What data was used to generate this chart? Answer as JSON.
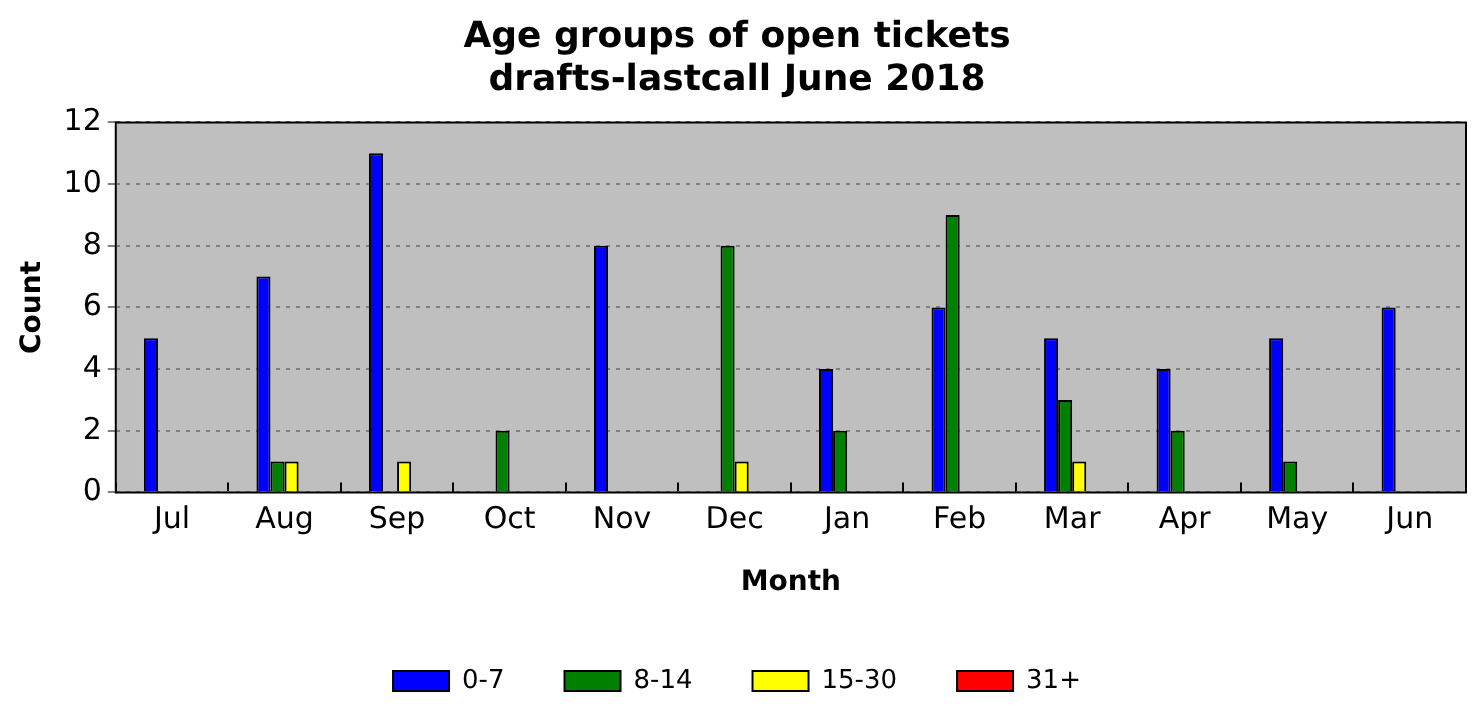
{
  "chart_data": {
    "type": "bar",
    "title": "Age groups of open tickets\ndrafts-lastcall June 2018",
    "xlabel": "Month",
    "ylabel": "Count",
    "categories": [
      "Jul",
      "Aug",
      "Sep",
      "Oct",
      "Nov",
      "Dec",
      "Jan",
      "Feb",
      "Mar",
      "Apr",
      "May",
      "Jun"
    ],
    "series": [
      {
        "name": "0-7",
        "color": "#0000ff",
        "values": [
          5,
          7,
          11,
          0,
          8,
          0,
          4,
          6,
          5,
          4,
          5,
          6
        ]
      },
      {
        "name": "8-14",
        "color": "#008000",
        "values": [
          0,
          1,
          0,
          2,
          0,
          8,
          2,
          9,
          3,
          2,
          1,
          0
        ]
      },
      {
        "name": "15-30",
        "color": "#ffff00",
        "values": [
          0,
          1,
          1,
          0,
          0,
          1,
          0,
          0,
          1,
          0,
          0,
          0
        ]
      },
      {
        "name": "31+",
        "color": "#ff0000",
        "values": [
          0,
          0,
          0,
          0,
          0,
          0,
          0,
          0,
          0,
          0,
          0,
          0
        ]
      }
    ],
    "ylim": [
      0,
      12
    ],
    "yticks": [
      0,
      2,
      4,
      6,
      8,
      10,
      12
    ],
    "grid": "y",
    "legend": "bottom"
  }
}
